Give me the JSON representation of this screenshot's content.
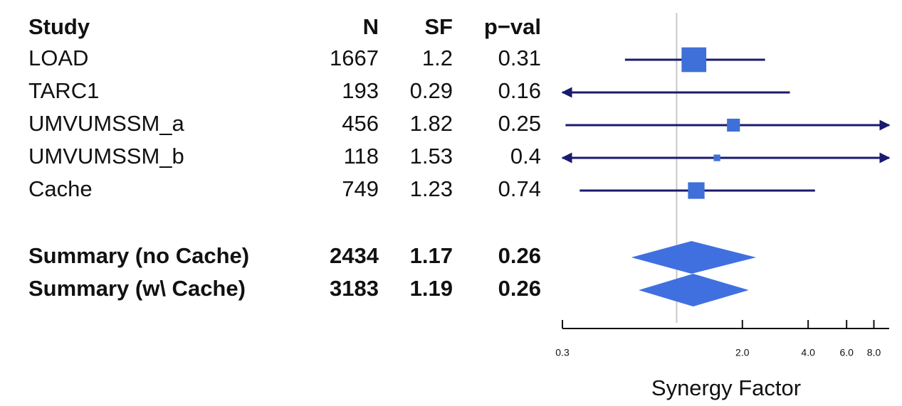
{
  "chart_data": {
    "type": "forest",
    "columns": [
      "Study",
      "N",
      "SF",
      "p−val"
    ],
    "studies": [
      {
        "name": "LOAD",
        "n": 1667,
        "sf": 1.2,
        "p": 0.31,
        "lower": 0.58,
        "upper": 2.54
      },
      {
        "name": "TARC1",
        "n": 193,
        "sf": 0.29,
        "p": 0.16,
        "lower": 0.05,
        "upper": 3.3
      },
      {
        "name": "UMVUMSSM_a",
        "n": 456,
        "sf": 1.82,
        "p": 0.25,
        "lower": 0.31,
        "upper": 12
      },
      {
        "name": "UMVUMSSM_b",
        "n": 118,
        "sf": 1.53,
        "p": 0.4,
        "lower": 0.25,
        "upper": 10
      },
      {
        "name": "Cache",
        "n": 749,
        "sf": 1.23,
        "p": 0.74,
        "lower": 0.36,
        "upper": 4.3
      }
    ],
    "summaries": [
      {
        "name": "Summary (no Cache)",
        "n": 2434,
        "sf": 1.17,
        "p": 0.26,
        "lower": 0.62,
        "upper": 2.31
      },
      {
        "name": "Summary (w\\ Cache)",
        "n": 3183,
        "sf": 1.19,
        "p": 0.26,
        "lower": 0.67,
        "upper": 2.14
      }
    ],
    "xlabel": "Synergy Factor",
    "xscale": "log",
    "xlim": [
      0.3,
      9.4
    ],
    "xticks": [
      {
        "value": 0.3,
        "label": "0.3"
      },
      {
        "value": 2,
        "label": "2.0"
      },
      {
        "value": 4,
        "label": "4.0"
      },
      {
        "value": 6,
        "label": "6.0"
      },
      {
        "value": 8,
        "label": "8.0"
      }
    ],
    "reference": 1,
    "point_color": "#3f6fd8",
    "line_color": "#1a1a6e",
    "diamond_color": "#4070e0"
  }
}
